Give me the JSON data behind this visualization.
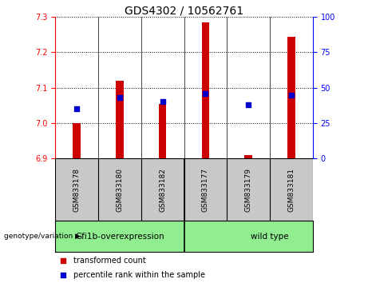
{
  "title": "GDS4302 / 10562761",
  "samples": [
    "GSM833178",
    "GSM833180",
    "GSM833182",
    "GSM833177",
    "GSM833179",
    "GSM833181"
  ],
  "transformed_count": [
    7.0,
    7.12,
    7.055,
    7.285,
    6.91,
    7.245
  ],
  "percentile_rank": [
    35,
    43,
    40,
    46,
    38,
    45
  ],
  "ylim_left": [
    6.9,
    7.3
  ],
  "ylim_right": [
    0,
    100
  ],
  "yticks_left": [
    6.9,
    7.0,
    7.1,
    7.2,
    7.3
  ],
  "yticks_right": [
    0,
    25,
    50,
    75,
    100
  ],
  "bar_color": "#cc0000",
  "dot_color": "#0000cc",
  "bar_bottom": 6.9,
  "group1_label": "Gfi1b-overexpression",
  "group2_label": "wild type",
  "group_color": "#90ee90",
  "genotype_label": "genotype/variation",
  "legend_items": [
    {
      "label": "transformed count",
      "color": "#cc0000"
    },
    {
      "label": "percentile rank within the sample",
      "color": "#0000cc"
    }
  ],
  "bar_width": 0.18,
  "grid_color": "black",
  "grid_linestyle": ":",
  "grid_linewidth": 0.7,
  "sample_box_color": "#c8c8c8",
  "spine_left_color": "red",
  "spine_right_color": "blue",
  "tick_left_color": "red",
  "tick_right_color": "blue",
  "tick_labelsize": 7,
  "title_fontsize": 10
}
